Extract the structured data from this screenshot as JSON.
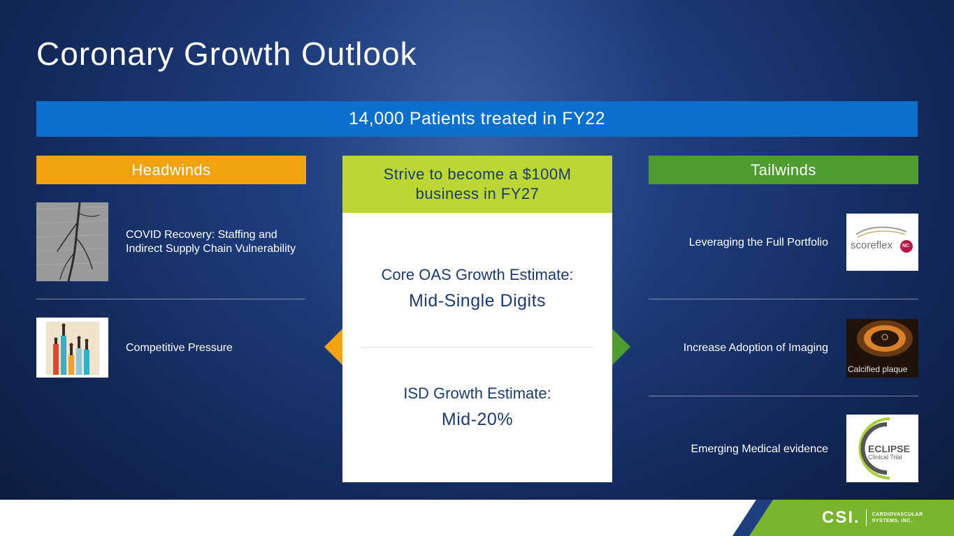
{
  "page": {
    "title": "Coronary Growth Outlook",
    "banner": "14,000 Patients treated in FY22"
  },
  "headwinds": {
    "header": "Headwinds",
    "items": [
      {
        "label": "COVID Recovery: Staffing and Indirect Supply Chain Vulnerability",
        "icon": "angiogram-image"
      },
      {
        "label": "Competitive Pressure",
        "icon": "bar-chart-people-icon"
      }
    ]
  },
  "center": {
    "header": "Strive to become a $100M business in FY27",
    "core_label": "Core OAS Growth Estimate:",
    "core_value": "Mid-Single Digits",
    "isd_label": "ISD Growth Estimate:",
    "isd_value": "Mid-20%"
  },
  "tailwinds": {
    "header": "Tailwinds",
    "items": [
      {
        "label": "Leveraging the Full Portfolio",
        "logo_text": "scoreflex",
        "badge": "NC"
      },
      {
        "label": "Increase Adoption of Imaging",
        "caption": "Calcified plaque"
      },
      {
        "label": "Emerging Medical evidence",
        "logo_title": "ECLIPSE",
        "logo_sub": "Clinical Trial"
      }
    ]
  },
  "footer": {
    "logo_mark": "CSI.",
    "logo_line1": "CARDIOVASCULAR",
    "logo_line2": "SYSTEMS, INC."
  },
  "colors": {
    "banner": "#0b6fce",
    "headwinds": "#f0a30f",
    "tailwinds": "#4f9c31",
    "center_header": "#bcd634",
    "navy_text": "#1d3a6e"
  }
}
